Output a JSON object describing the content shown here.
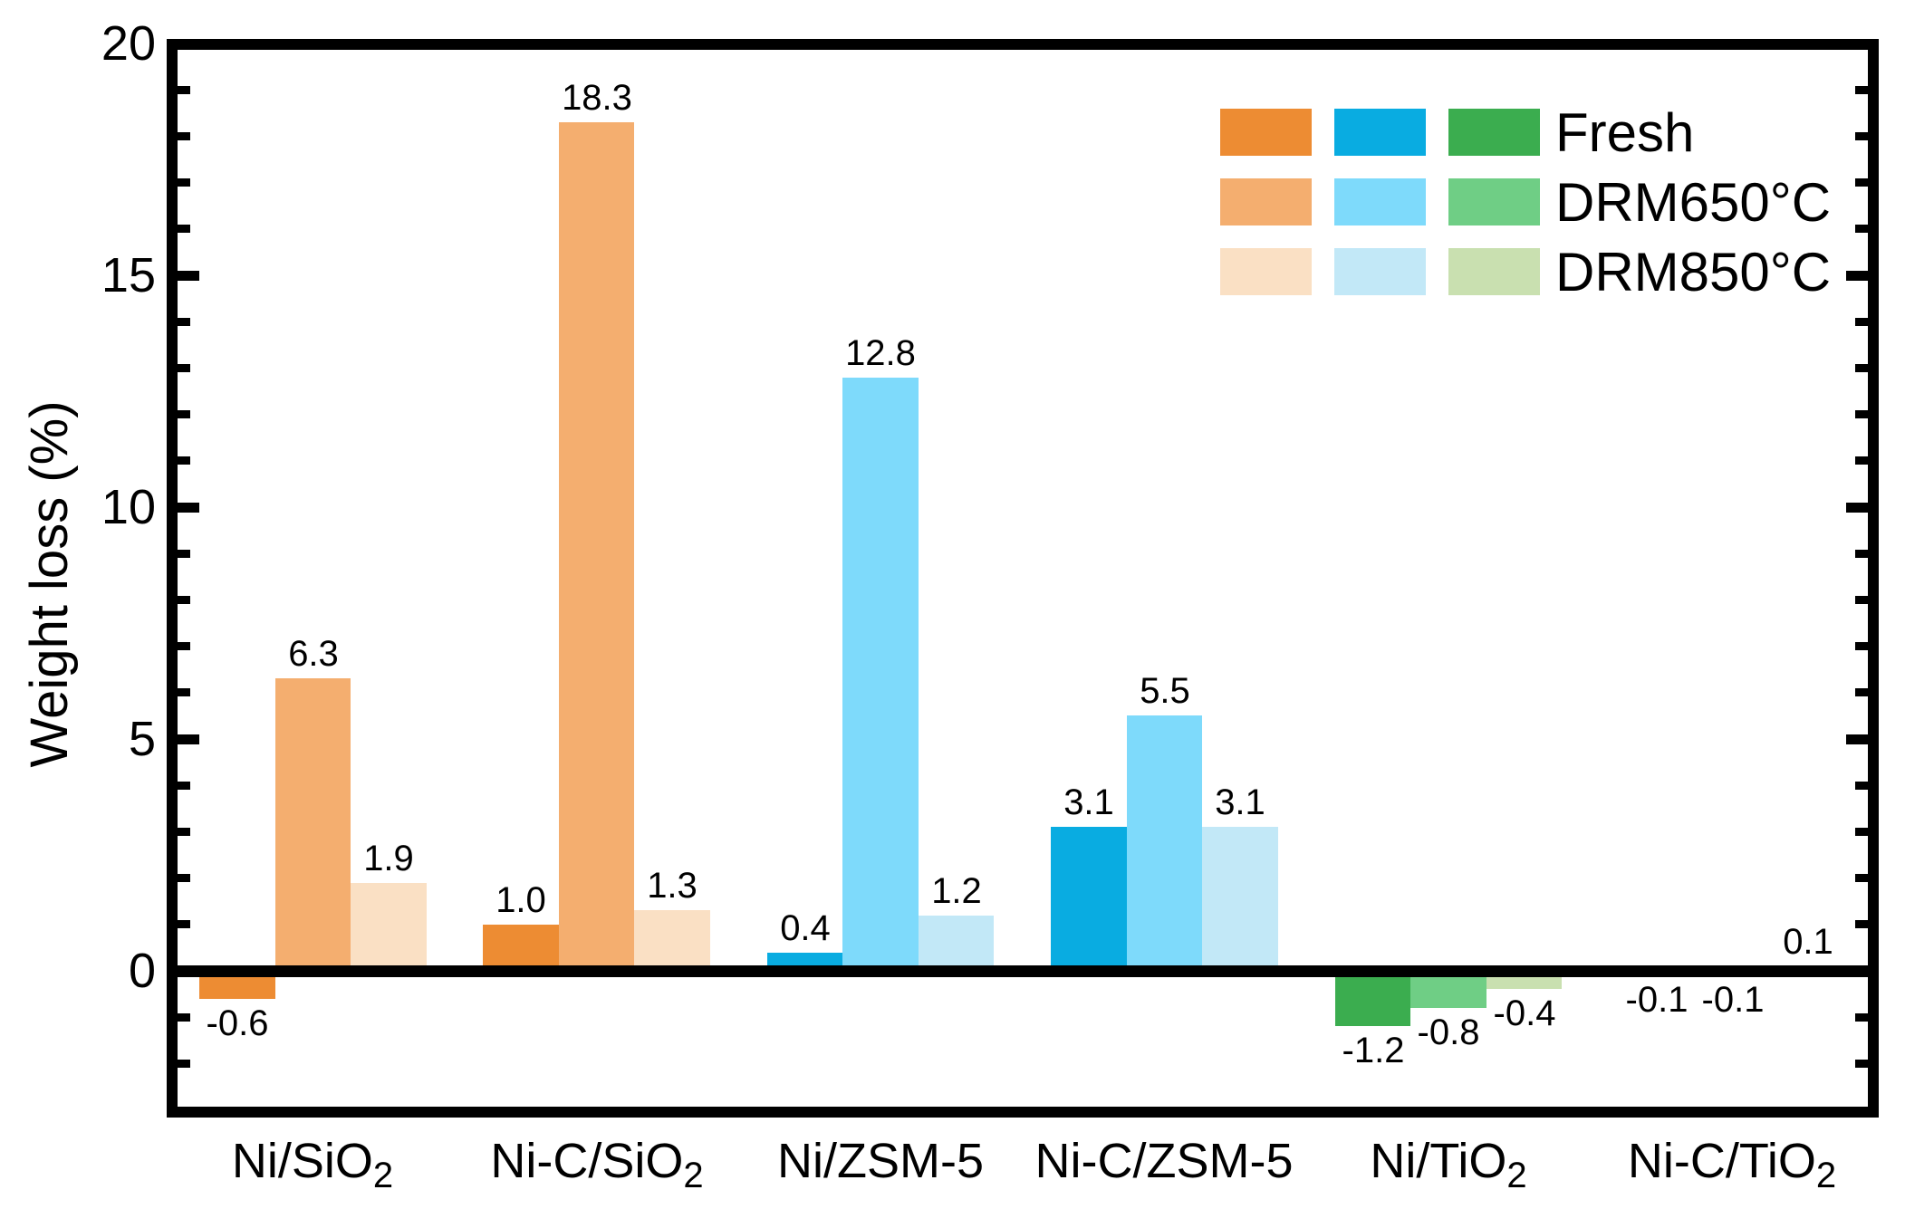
{
  "chart_data": {
    "type": "bar",
    "title": "",
    "ylabel": "Weight loss (%)",
    "xlabel": "",
    "ylim": [
      -3.05,
      20.3
    ],
    "y_major_ticks": [
      0,
      5,
      10,
      15,
      20
    ],
    "y_minor_tick_step": 1,
    "grid": "off",
    "legend_position": "top-right-inside",
    "value_label_decimals": 1,
    "categories": [
      "Ni/SiO2",
      "Ni-C/SiO2",
      "Ni/ZSM-5",
      "Ni-C/ZSM-5",
      "Ni/TiO2",
      "Ni-C/TiO2"
    ],
    "category_display": [
      {
        "text": "Ni/SiO",
        "sub": "2"
      },
      {
        "text": "Ni-C/SiO",
        "sub": "2"
      },
      {
        "text": "Ni/ZSM-5",
        "sub": ""
      },
      {
        "text": "Ni-C/ZSM-5",
        "sub": ""
      },
      {
        "text": "Ni/TiO",
        "sub": "2"
      },
      {
        "text": "Ni-C/TiO",
        "sub": "2"
      }
    ],
    "series": [
      {
        "name": "Fresh",
        "values": [
          -0.6,
          1.0,
          0.4,
          3.1,
          -1.2,
          -0.1
        ]
      },
      {
        "name": "DRM650°C",
        "values": [
          6.3,
          18.3,
          12.8,
          5.5,
          -0.8,
          -0.1
        ]
      },
      {
        "name": "DRM850°C",
        "values": [
          1.9,
          1.3,
          1.2,
          3.1,
          -0.4,
          0.1
        ]
      }
    ],
    "support_color_groups": [
      {
        "supports": [
          "Ni/SiO2",
          "Ni-C/SiO2"
        ],
        "shades": [
          "#ED8C33",
          "#F4AE6F",
          "#FAE0C4"
        ]
      },
      {
        "supports": [
          "Ni/ZSM-5",
          "Ni-C/ZSM-5"
        ],
        "shades": [
          "#09ACE1",
          "#7EDAFB",
          "#C2E8F7"
        ]
      },
      {
        "supports": [
          "Ni/TiO2",
          "Ni-C/TiO2"
        ],
        "shades": [
          "#3BAD4F",
          "#6FCE85",
          "#C9E0B0"
        ]
      }
    ],
    "axis_color": "#000000",
    "text_color": "#000000"
  }
}
